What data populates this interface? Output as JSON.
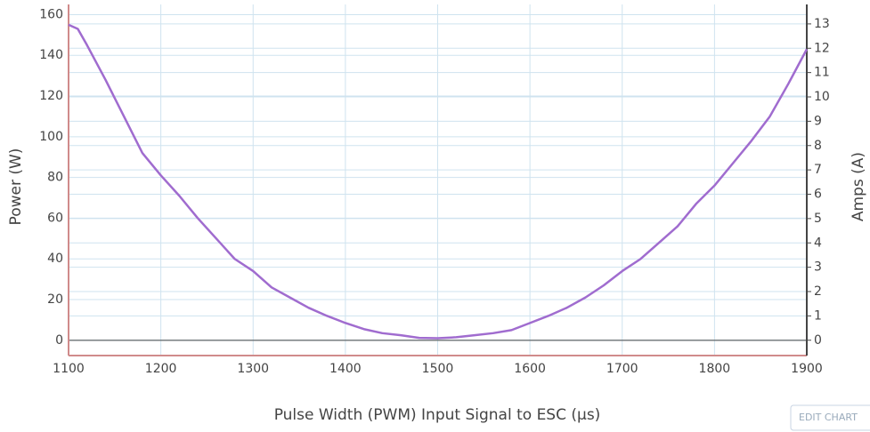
{
  "chart_data": {
    "type": "line",
    "x": [
      1100,
      1110,
      1120,
      1140,
      1160,
      1180,
      1200,
      1220,
      1240,
      1260,
      1280,
      1300,
      1320,
      1340,
      1360,
      1380,
      1400,
      1420,
      1440,
      1460,
      1480,
      1500,
      1520,
      1540,
      1560,
      1580,
      1600,
      1620,
      1640,
      1660,
      1680,
      1700,
      1720,
      1740,
      1760,
      1780,
      1800,
      1820,
      1840,
      1860,
      1880,
      1900
    ],
    "values": [
      155,
      153,
      145,
      128,
      110,
      92,
      81,
      71,
      60,
      50,
      40,
      34,
      26,
      21,
      16,
      12,
      8.5,
      5.5,
      3.5,
      2.5,
      1.2,
      1,
      1.5,
      2.5,
      3.5,
      5,
      8.5,
      12,
      16,
      21,
      27,
      34,
      40,
      48,
      56,
      67,
      76,
      87,
      98,
      110,
      126,
      143
    ],
    "color": "#a06ccf",
    "xlabel": "Pulse Width (PWM) Input Signal to ESC (µs)",
    "ylabel": "Power (W)",
    "y2label": "Amps (A)",
    "xlim": [
      1100,
      1900
    ],
    "xticks": [
      1100,
      1200,
      1300,
      1400,
      1500,
      1600,
      1700,
      1800,
      1900
    ],
    "ylim": [
      -7.5,
      165
    ],
    "yticks": [
      0,
      20,
      40,
      60,
      80,
      100,
      120,
      140,
      160
    ],
    "y2lim": [
      -0.63,
      13.8
    ],
    "y2ticks": [
      0,
      1,
      2,
      3,
      4,
      5,
      6,
      7,
      8,
      9,
      10,
      11,
      12,
      13
    ],
    "grid": true
  },
  "button": "EDIT CHART"
}
